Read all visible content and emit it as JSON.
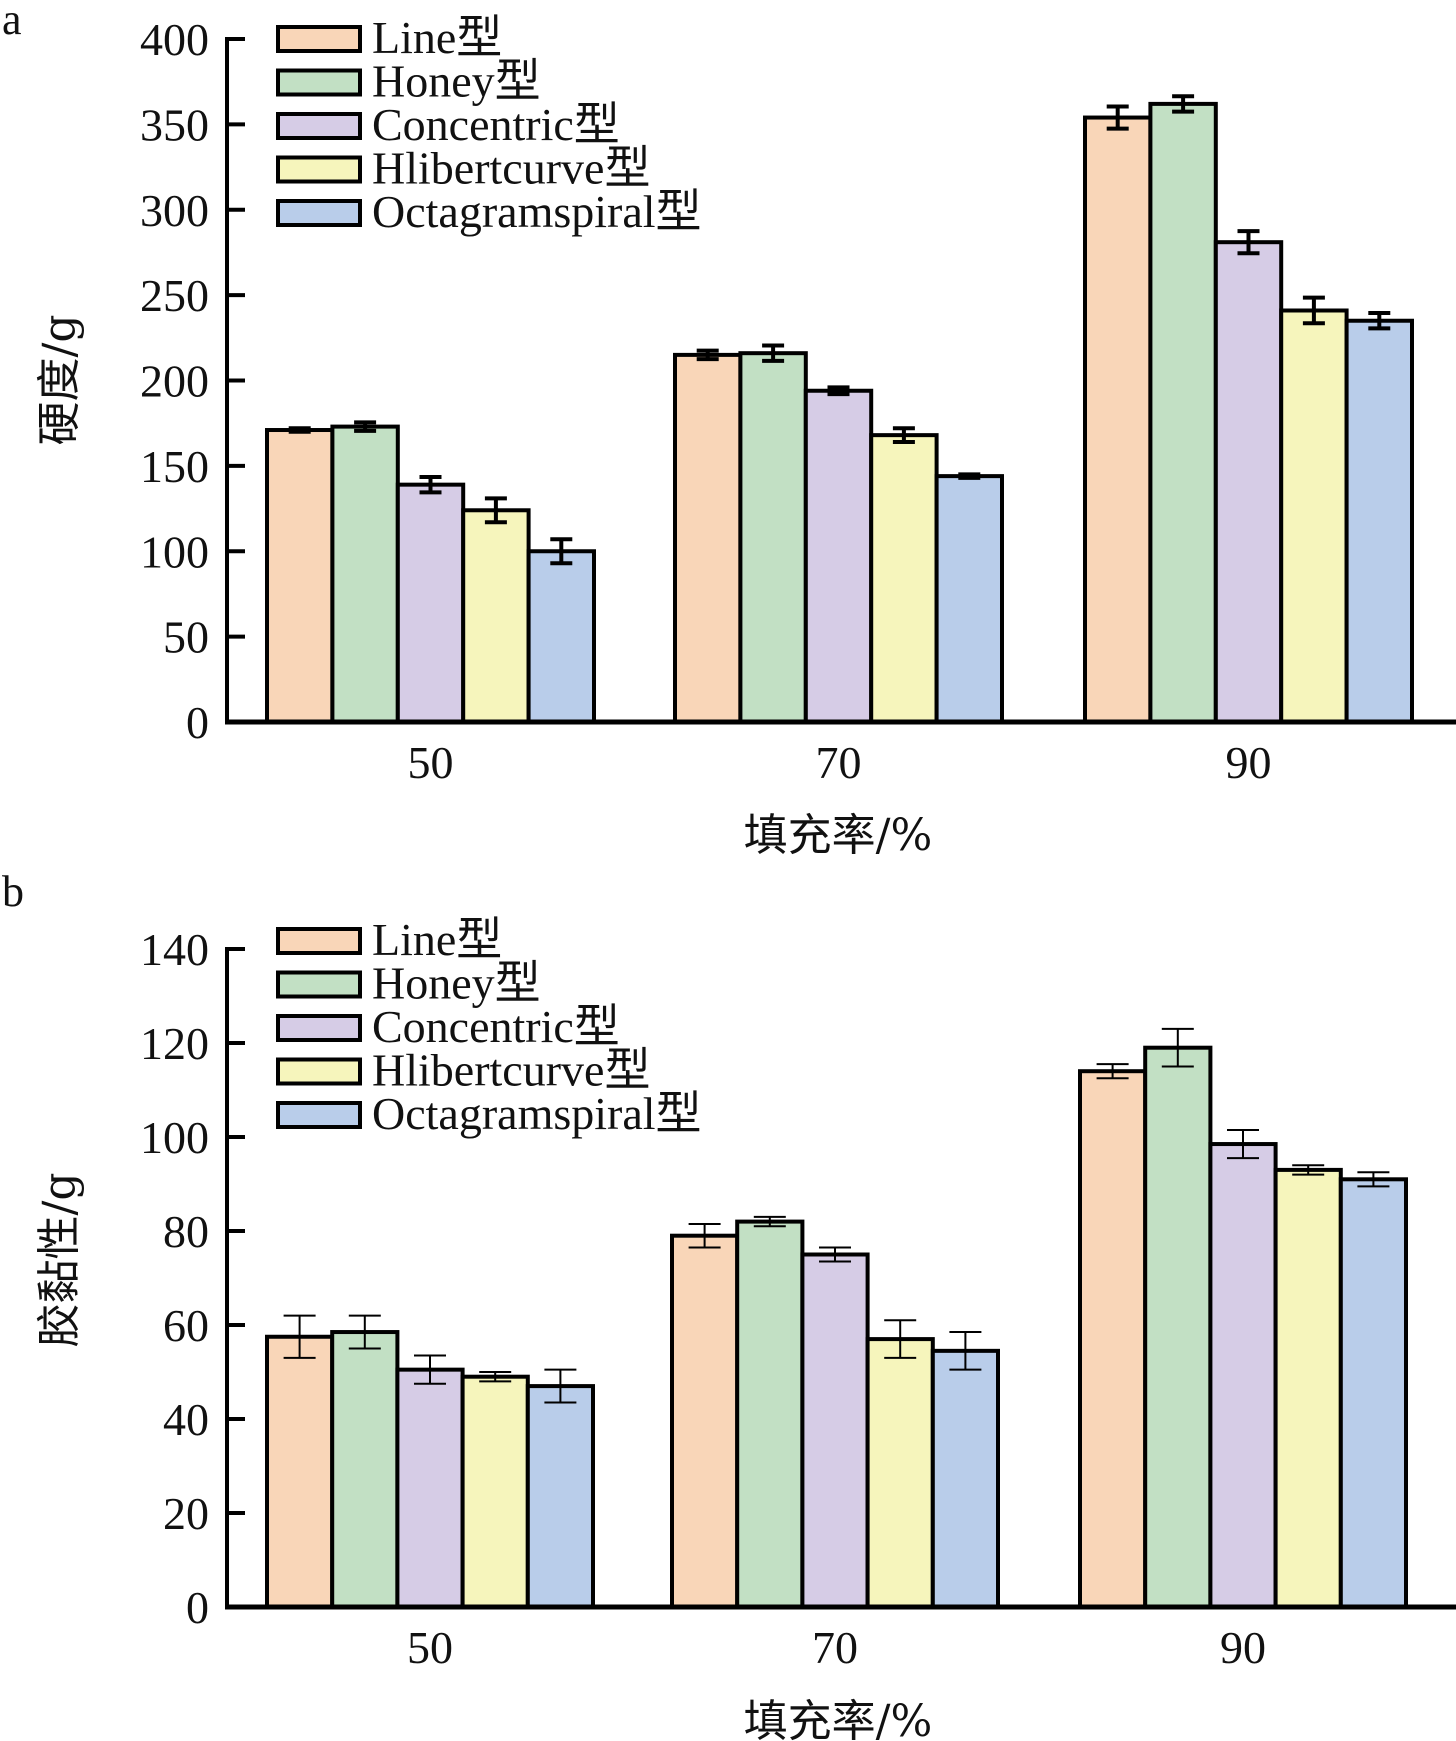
{
  "colors": {
    "Line型": "#F9D6B8",
    "Honey型": "#C2E0C4",
    "Concentric型": "#D6CCE6",
    "Hlibertcurve型": "#F6F5BC",
    "Octagramspiral型": "#B9CDEA",
    "stroke": "#000000"
  },
  "chart_data": [
    {
      "panel": "a",
      "type": "bar",
      "title": "",
      "xlabel": "填充率/%",
      "ylabel": "硬度/g",
      "categories": [
        "50",
        "70",
        "90"
      ],
      "ylim": [
        0,
        400
      ],
      "yticks": [
        0,
        50,
        100,
        150,
        200,
        250,
        300,
        350,
        400
      ],
      "yticklabels": [
        "0",
        "50",
        "100",
        "150",
        "200",
        "250",
        "300",
        "350",
        "400"
      ],
      "grid": false,
      "legend_position": "top-left",
      "legend": [
        "Line型",
        "Honey型",
        "Concentric型",
        "Hlibertcurve型",
        "Octagramspiral型"
      ],
      "series": [
        {
          "name": "Line型",
          "values": [
            171,
            215,
            354
          ],
          "errors": [
            1,
            2.5,
            6.5
          ]
        },
        {
          "name": "Honey型",
          "values": [
            173,
            216,
            362
          ],
          "errors": [
            2.5,
            4.5,
            4.5
          ]
        },
        {
          "name": "Concentric型",
          "values": [
            139,
            194,
            281
          ],
          "errors": [
            4.5,
            2,
            6.5
          ]
        },
        {
          "name": "Hlibertcurve型",
          "values": [
            124,
            168,
            241
          ],
          "errors": [
            7,
            4,
            7.5
          ]
        },
        {
          "name": "Octagramspiral型",
          "values": [
            100,
            144,
            235
          ],
          "errors": [
            7,
            1,
            4.5
          ]
        }
      ]
    },
    {
      "panel": "b",
      "type": "bar",
      "title": "",
      "xlabel": "填充率/%",
      "ylabel": "胶黏性/g",
      "categories": [
        "50",
        "70",
        "90"
      ],
      "ylim": [
        0,
        140
      ],
      "yticks": [
        0,
        20,
        40,
        60,
        80,
        100,
        120,
        140
      ],
      "yticklabels": [
        "0",
        "20",
        "40",
        "60",
        "80",
        "100",
        "120",
        "140"
      ],
      "grid": false,
      "legend_position": "top-left",
      "legend": [
        "Line型",
        "Honey型",
        "Concentric型",
        "Hlibertcurve型",
        "Octagramspiral型"
      ],
      "series": [
        {
          "name": "Line型",
          "values": [
            57.5,
            79,
            114
          ],
          "errors": [
            4.5,
            2.5,
            1.5
          ]
        },
        {
          "name": "Honey型",
          "values": [
            58.5,
            82,
            119
          ],
          "errors": [
            3.5,
            1,
            4
          ]
        },
        {
          "name": "Concentric型",
          "values": [
            50.5,
            75,
            98.5
          ],
          "errors": [
            3,
            1.5,
            3
          ]
        },
        {
          "name": "Hlibertcurve型",
          "values": [
            49,
            57,
            93
          ],
          "errors": [
            1,
            4,
            1
          ]
        },
        {
          "name": "Octagramspiral型",
          "values": [
            47,
            54.5,
            91
          ],
          "errors": [
            3.5,
            4,
            1.5
          ]
        }
      ]
    }
  ]
}
